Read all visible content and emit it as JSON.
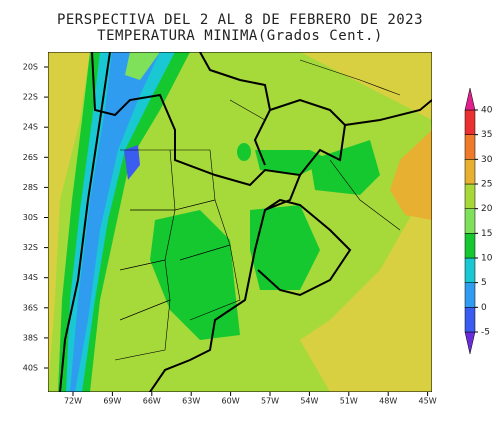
{
  "title": "PERSPECTIVA DEL 2 AL 8 DE FEBRERO DE 2023",
  "subtitle": "TEMPERATURA MINIMA(Grados Cent.)",
  "lat_labels": [
    "20S",
    "22S",
    "24S",
    "26S",
    "28S",
    "30S",
    "32S",
    "34S",
    "36S",
    "38S",
    "40S"
  ],
  "lon_labels": [
    "72W",
    "69W",
    "66W",
    "63W",
    "60W",
    "57W",
    "54W",
    "51W",
    "48W",
    "45W"
  ],
  "colorbar": {
    "levels": [
      -5,
      0,
      5,
      10,
      15,
      20,
      25,
      30,
      35,
      40
    ],
    "colors": [
      "#6a2cd8",
      "#3a5cf0",
      "#2f9cf0",
      "#19c8d2",
      "#16c830",
      "#7fe05a",
      "#a8d838",
      "#e8b030",
      "#ee7a2a",
      "#ea3030",
      "#e0208c"
    ]
  }
}
